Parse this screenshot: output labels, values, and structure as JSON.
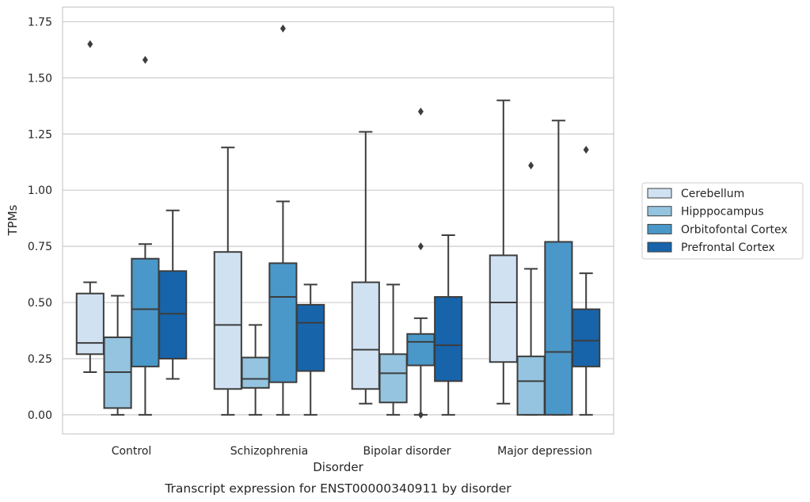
{
  "chart_data": {
    "type": "boxplot",
    "title": "",
    "caption": "Transcript expression for ENST00000340911 by disorder",
    "xlabel": "Disorder",
    "ylabel": "TPMs",
    "ylim": [
      -0.085,
      1.815
    ],
    "yticks": [
      "0.00",
      "0.25",
      "0.50",
      "0.75",
      "1.00",
      "1.25",
      "1.50",
      "1.75"
    ],
    "ytick_values": [
      0,
      0.25,
      0.5,
      0.75,
      1.0,
      1.25,
      1.5,
      1.75
    ],
    "grid": "horizontal",
    "legend_position": "right",
    "categories": [
      "Control",
      "Schizophrenia",
      "Bipolar disorder",
      "Major depression"
    ],
    "series": [
      {
        "name": "Cerebellum",
        "color": "#d0e1f2",
        "boxes": [
          {
            "whislo": 0.19,
            "q1": 0.27,
            "med": 0.32,
            "q3": 0.54,
            "whishi": 0.59,
            "fliers": [
              1.65
            ]
          },
          {
            "whislo": 0.0,
            "q1": 0.115,
            "med": 0.4,
            "q3": 0.725,
            "whishi": 1.19,
            "fliers": []
          },
          {
            "whislo": 0.05,
            "q1": 0.115,
            "med": 0.29,
            "q3": 0.59,
            "whishi": 1.26,
            "fliers": []
          },
          {
            "whislo": 0.05,
            "q1": 0.235,
            "med": 0.5,
            "q3": 0.71,
            "whishi": 1.4,
            "fliers": []
          }
        ]
      },
      {
        "name": "Hipppocampus",
        "color": "#94c4df",
        "boxes": [
          {
            "whislo": 0.0,
            "q1": 0.03,
            "med": 0.19,
            "q3": 0.345,
            "whishi": 0.53,
            "fliers": []
          },
          {
            "whislo": 0.0,
            "q1": 0.12,
            "med": 0.16,
            "q3": 0.255,
            "whishi": 0.4,
            "fliers": []
          },
          {
            "whislo": 0.0,
            "q1": 0.055,
            "med": 0.185,
            "q3": 0.27,
            "whishi": 0.58,
            "fliers": []
          },
          {
            "whislo": 0.0,
            "q1": 0.0,
            "med": 0.15,
            "q3": 0.26,
            "whishi": 0.65,
            "fliers": [
              1.11
            ]
          }
        ]
      },
      {
        "name": "Orbitofontal Cortex",
        "color": "#4a98c9",
        "boxes": [
          {
            "whislo": 0.0,
            "q1": 0.215,
            "med": 0.47,
            "q3": 0.695,
            "whishi": 0.76,
            "fliers": [
              1.58
            ]
          },
          {
            "whislo": 0.0,
            "q1": 0.145,
            "med": 0.525,
            "q3": 0.675,
            "whishi": 0.95,
            "fliers": [
              1.72
            ]
          },
          {
            "whislo": 0.0,
            "q1": 0.22,
            "med": 0.325,
            "q3": 0.36,
            "whishi": 0.43,
            "fliers": [
              0.75,
              1.35,
              0.0
            ]
          },
          {
            "whislo": 0.0,
            "q1": 0.0,
            "med": 0.28,
            "q3": 0.77,
            "whishi": 1.31,
            "fliers": []
          }
        ]
      },
      {
        "name": "Prefrontal Cortex",
        "color": "#1764ab",
        "boxes": [
          {
            "whislo": 0.16,
            "q1": 0.25,
            "med": 0.45,
            "q3": 0.64,
            "whishi": 0.91,
            "fliers": []
          },
          {
            "whislo": 0.0,
            "q1": 0.195,
            "med": 0.41,
            "q3": 0.49,
            "whishi": 0.58,
            "fliers": []
          },
          {
            "whislo": 0.0,
            "q1": 0.15,
            "med": 0.31,
            "q3": 0.525,
            "whishi": 0.8,
            "fliers": []
          },
          {
            "whislo": 0.0,
            "q1": 0.215,
            "med": 0.33,
            "q3": 0.47,
            "whishi": 0.63,
            "fliers": [
              1.18
            ]
          }
        ]
      }
    ]
  }
}
